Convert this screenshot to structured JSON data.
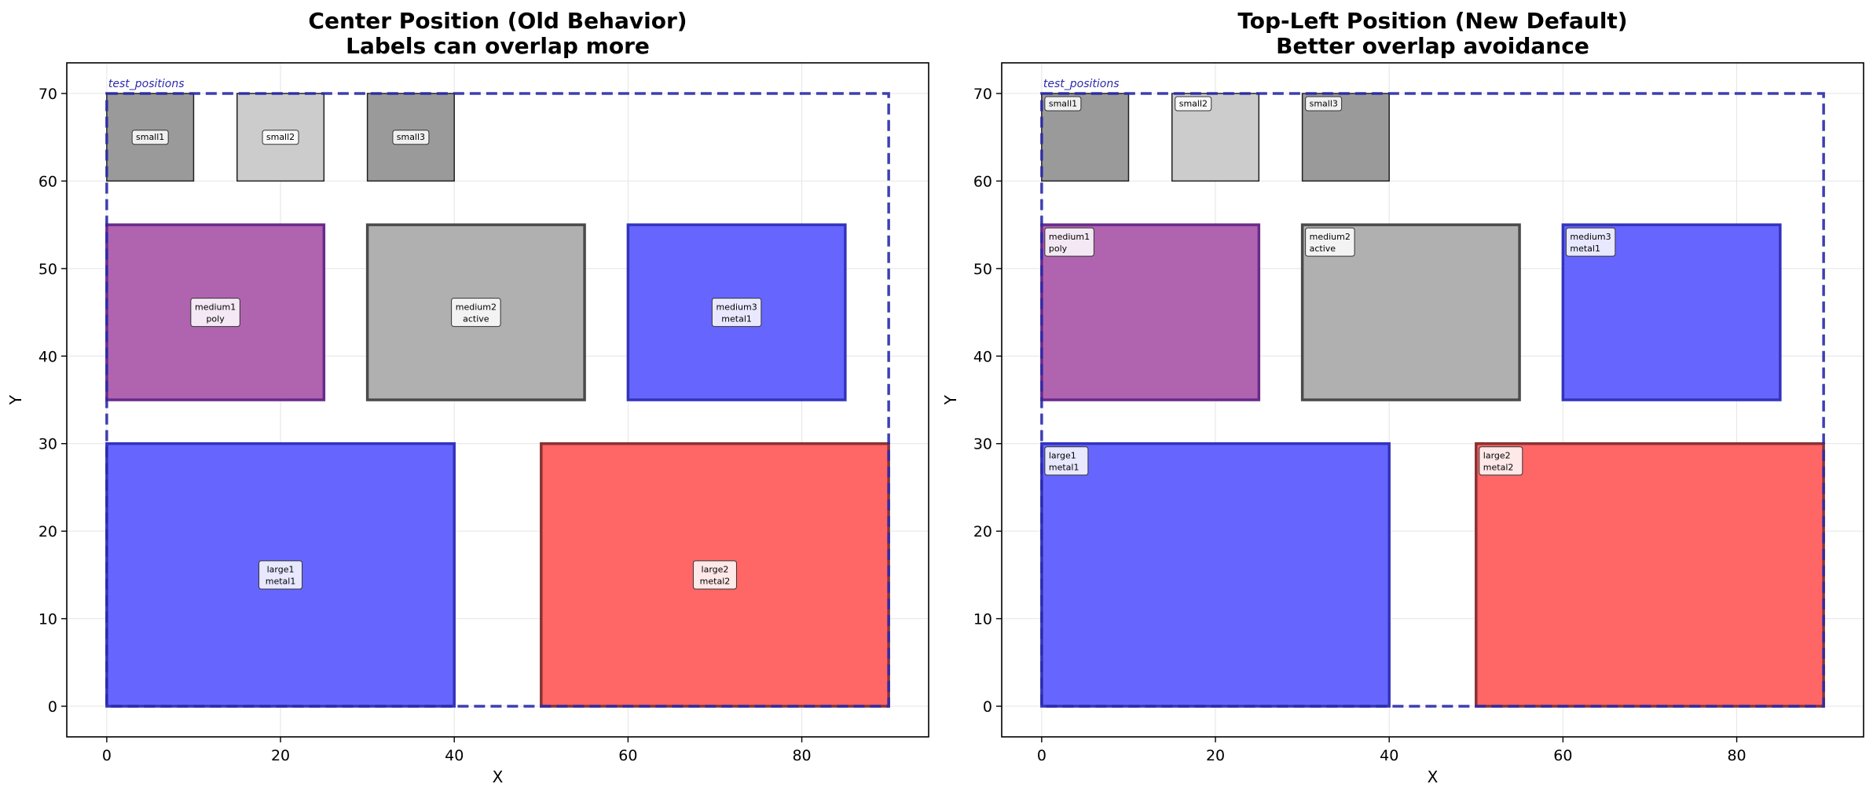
{
  "chart_data": [
    {
      "type": "layout",
      "title": [
        "Center Position (Old Behavior)",
        "Labels can overlap more"
      ],
      "xlabel": "X",
      "ylabel": "Y",
      "xlim": [
        -4.6,
        94.6
      ],
      "ylim": [
        -3.5,
        73.5
      ],
      "xticks": [
        0,
        20,
        40,
        60,
        80
      ],
      "yticks": [
        0,
        10,
        20,
        30,
        40,
        50,
        60,
        70
      ],
      "grid": true,
      "label_position": "center",
      "boundary": {
        "name": "test_positions",
        "x0": 0,
        "y0": 0,
        "x1": 90,
        "y1": 70,
        "color": "#2a2aaa"
      },
      "rects": [
        {
          "name": "small1",
          "layer": "",
          "x0": 0,
          "y0": 60,
          "x1": 10,
          "y1": 70,
          "fill": "#9a9a9a",
          "opacity": 1,
          "stroke": "#222222",
          "stroke_width": 1.5
        },
        {
          "name": "small2",
          "layer": "",
          "x0": 15,
          "y0": 60,
          "x1": 25,
          "y1": 70,
          "fill": "#cccccc",
          "opacity": 1,
          "stroke": "#222222",
          "stroke_width": 1.5
        },
        {
          "name": "small3",
          "layer": "",
          "x0": 30,
          "y0": 60,
          "x1": 40,
          "y1": 70,
          "fill": "#9a9a9a",
          "opacity": 1,
          "stroke": "#222222",
          "stroke_width": 1.5
        },
        {
          "name": "medium1",
          "layer": "poly",
          "x0": 0,
          "y0": 35,
          "x1": 25,
          "y1": 55,
          "fill": "#b064b0",
          "opacity": 1,
          "stroke": "#6a2a8a",
          "stroke_width": 3.5
        },
        {
          "name": "medium2",
          "layer": "active",
          "x0": 30,
          "y0": 35,
          "x1": 55,
          "y1": 55,
          "fill": "#b0b0b0",
          "opacity": 1,
          "stroke": "#4a4a4a",
          "stroke_width": 3.5
        },
        {
          "name": "medium3",
          "layer": "metal1",
          "x0": 60,
          "y0": 35,
          "x1": 85,
          "y1": 55,
          "fill": "#6666ff",
          "opacity": 1,
          "stroke": "#3333bb",
          "stroke_width": 3.5
        },
        {
          "name": "large1",
          "layer": "metal1",
          "x0": 0,
          "y0": 0,
          "x1": 40,
          "y1": 30,
          "fill": "#6666ff",
          "opacity": 1,
          "stroke": "#3333bb",
          "stroke_width": 3.5
        },
        {
          "name": "large2",
          "layer": "metal2",
          "x0": 50,
          "y0": 0,
          "x1": 90,
          "y1": 30,
          "fill": "#ff6666",
          "opacity": 1,
          "stroke": "#883333",
          "stroke_width": 3.5
        }
      ]
    },
    {
      "type": "layout",
      "title": [
        "Top-Left Position (New Default)",
        "Better overlap avoidance"
      ],
      "xlabel": "X",
      "ylabel": "Y",
      "xlim": [
        -4.6,
        94.6
      ],
      "ylim": [
        -3.5,
        73.5
      ],
      "xticks": [
        0,
        20,
        40,
        60,
        80
      ],
      "yticks": [
        0,
        10,
        20,
        30,
        40,
        50,
        60,
        70
      ],
      "grid": true,
      "label_position": "top-left",
      "boundary": {
        "name": "test_positions",
        "x0": 0,
        "y0": 0,
        "x1": 90,
        "y1": 70,
        "color": "#2a2aaa"
      },
      "rects": [
        {
          "name": "small1",
          "layer": "",
          "x0": 0,
          "y0": 60,
          "x1": 10,
          "y1": 70,
          "fill": "#9a9a9a",
          "opacity": 1,
          "stroke": "#222222",
          "stroke_width": 1.5
        },
        {
          "name": "small2",
          "layer": "",
          "x0": 15,
          "y0": 60,
          "x1": 25,
          "y1": 70,
          "fill": "#cccccc",
          "opacity": 1,
          "stroke": "#222222",
          "stroke_width": 1.5
        },
        {
          "name": "small3",
          "layer": "",
          "x0": 30,
          "y0": 60,
          "x1": 40,
          "y1": 70,
          "fill": "#9a9a9a",
          "opacity": 1,
          "stroke": "#222222",
          "stroke_width": 1.5
        },
        {
          "name": "medium1",
          "layer": "poly",
          "x0": 0,
          "y0": 35,
          "x1": 25,
          "y1": 55,
          "fill": "#b064b0",
          "opacity": 1,
          "stroke": "#6a2a8a",
          "stroke_width": 3.5
        },
        {
          "name": "medium2",
          "layer": "active",
          "x0": 30,
          "y0": 35,
          "x1": 55,
          "y1": 55,
          "fill": "#b0b0b0",
          "opacity": 1,
          "stroke": "#4a4a4a",
          "stroke_width": 3.5
        },
        {
          "name": "medium3",
          "layer": "metal1",
          "x0": 60,
          "y0": 35,
          "x1": 85,
          "y1": 55,
          "fill": "#6666ff",
          "opacity": 1,
          "stroke": "#3333bb",
          "stroke_width": 3.5
        },
        {
          "name": "large1",
          "layer": "metal1",
          "x0": 0,
          "y0": 0,
          "x1": 40,
          "y1": 30,
          "fill": "#6666ff",
          "opacity": 1,
          "stroke": "#3333bb",
          "stroke_width": 3.5
        },
        {
          "name": "large2",
          "layer": "metal2",
          "x0": 50,
          "y0": 0,
          "x1": 90,
          "y1": 30,
          "fill": "#ff6666",
          "opacity": 1,
          "stroke": "#883333",
          "stroke_width": 3.5
        }
      ]
    }
  ]
}
